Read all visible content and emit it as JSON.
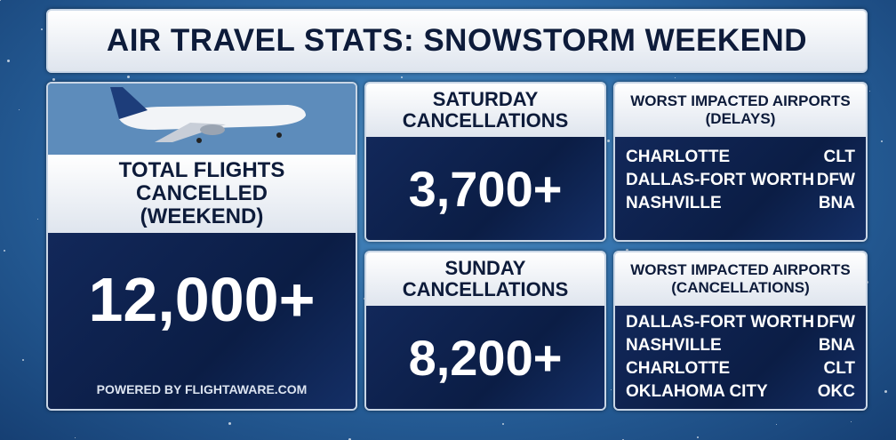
{
  "header": {
    "title": "AIR TRAVEL STATS: SNOWSTORM WEEKEND"
  },
  "total": {
    "label": [
      "TOTAL FLIGHTS",
      "CANCELLED",
      "(WEEKEND)"
    ],
    "value": "12,000+",
    "credit": "POWERED BY FLIGHTAWARE.COM"
  },
  "saturday": {
    "label": [
      "SATURDAY",
      "CANCELLATIONS"
    ],
    "value": "3,700+"
  },
  "sunday": {
    "label": [
      "SUNDAY",
      "CANCELLATIONS"
    ],
    "value": "8,200+"
  },
  "delays": {
    "title": [
      "WORST IMPACTED AIRPORTS",
      "(DELAYS)"
    ],
    "airports": [
      [
        "CHARLOTTE",
        "CLT"
      ],
      [
        "DALLAS-FORT WORTH",
        "DFW"
      ],
      [
        "NASHVILLE",
        "BNA"
      ]
    ]
  },
  "cancellations": {
    "title": [
      "WORST IMPACTED AIRPORTS",
      "(CANCELLATIONS)"
    ],
    "airports": [
      [
        "DALLAS-FORT WORTH",
        "DFW"
      ],
      [
        "NASHVILLE",
        "BNA"
      ],
      [
        "CHARLOTTE",
        "CLT"
      ],
      [
        "OKLAHOMA CITY",
        "OKC"
      ]
    ]
  }
}
